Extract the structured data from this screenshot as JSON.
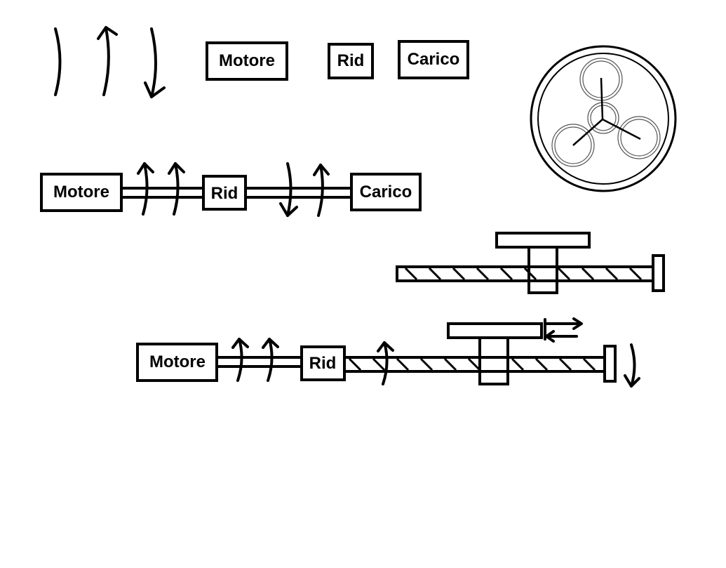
{
  "labels": {
    "motor": "Motore",
    "reducer": "Rid",
    "load": "Carico"
  },
  "colors": {
    "stroke": "#000000",
    "background": "#ffffff",
    "planet_outline": "#555555"
  },
  "icons": [
    "rotation-arrow-icon",
    "linear-motion-arrow-icon",
    "planetary-gear-icon",
    "lead-screw-icon"
  ]
}
